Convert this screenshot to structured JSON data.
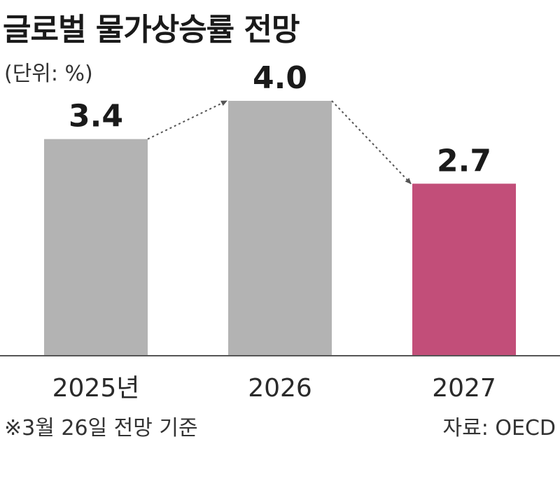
{
  "chart_data": {
    "type": "bar",
    "title": "글로벌 물가상승률 전망",
    "unit_label": "(단위: %)",
    "categories": [
      "2025년",
      "2026",
      "2027"
    ],
    "values": [
      3.4,
      4.0,
      2.7
    ],
    "value_labels": [
      "3.4",
      "4.0",
      "2.7"
    ],
    "ylim": [
      0,
      4.0
    ],
    "grid": false,
    "bar_colors": [
      "#b3b3b3",
      "#b3b3b3",
      "#c24e79"
    ],
    "axis_color": "#555555",
    "arrow_color": "#555555"
  },
  "footnote": "※3월 26일 전망 기준",
  "source": "자료: OECD"
}
